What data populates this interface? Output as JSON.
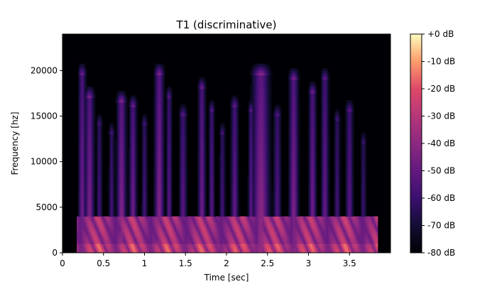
{
  "chart_data": {
    "type": "heatmap",
    "title": "T1 (discriminative)",
    "xlabel": "Time [sec]",
    "ylabel": "Frequency [hz]",
    "xlim": [
      0,
      4.0
    ],
    "ylim": [
      0,
      24000
    ],
    "x_ticks": [
      0,
      0.5,
      1,
      1.5,
      2,
      2.5,
      3,
      3.5
    ],
    "x_tick_labels": [
      "0",
      "0.5",
      "1",
      "1.5",
      "2",
      "2.5",
      "3",
      "3.5"
    ],
    "y_ticks": [
      0,
      5000,
      10000,
      15000,
      20000
    ],
    "y_tick_labels": [
      "0",
      "5000",
      "10000",
      "15000",
      "20000"
    ],
    "colorbar": {
      "label_ticks": [
        0,
        -10,
        -20,
        -30,
        -40,
        -50,
        -60,
        -70,
        -80
      ],
      "label_texts": [
        "+0 dB",
        "-10 dB",
        "-20 dB",
        "-30 dB",
        "-40 dB",
        "-50 dB",
        "-60 dB",
        "-70 dB",
        "-80 dB"
      ],
      "range": [
        -80,
        0
      ],
      "colormap": "magma"
    },
    "events": [
      {
        "t": 0.24,
        "w": 0.04,
        "peak_db": -45,
        "top_hz": 19500
      },
      {
        "t": 0.33,
        "w": 0.05,
        "peak_db": -42,
        "top_hz": 17000
      },
      {
        "t": 0.45,
        "w": 0.03,
        "peak_db": -55,
        "top_hz": 14000
      },
      {
        "t": 0.6,
        "w": 0.03,
        "peak_db": -55,
        "top_hz": 13000
      },
      {
        "t": 0.72,
        "w": 0.05,
        "peak_db": -40,
        "top_hz": 16500
      },
      {
        "t": 0.86,
        "w": 0.04,
        "peak_db": -45,
        "top_hz": 16000
      },
      {
        "t": 1.0,
        "w": 0.03,
        "peak_db": -55,
        "top_hz": 14000
      },
      {
        "t": 1.18,
        "w": 0.05,
        "peak_db": -40,
        "top_hz": 19500
      },
      {
        "t": 1.3,
        "w": 0.03,
        "peak_db": -50,
        "top_hz": 17000
      },
      {
        "t": 1.47,
        "w": 0.04,
        "peak_db": -50,
        "top_hz": 15000
      },
      {
        "t": 1.7,
        "w": 0.04,
        "peak_db": -45,
        "top_hz": 18000
      },
      {
        "t": 1.82,
        "w": 0.03,
        "peak_db": -50,
        "top_hz": 15500
      },
      {
        "t": 1.95,
        "w": 0.03,
        "peak_db": -55,
        "top_hz": 13000
      },
      {
        "t": 2.1,
        "w": 0.04,
        "peak_db": -48,
        "top_hz": 16000
      },
      {
        "t": 2.3,
        "w": 0.03,
        "peak_db": -50,
        "top_hz": 15500
      },
      {
        "t": 2.42,
        "w": 0.09,
        "peak_db": -38,
        "top_hz": 19500
      },
      {
        "t": 2.62,
        "w": 0.04,
        "peak_db": -52,
        "top_hz": 15000
      },
      {
        "t": 2.82,
        "w": 0.05,
        "peak_db": -42,
        "top_hz": 19000
      },
      {
        "t": 3.05,
        "w": 0.04,
        "peak_db": -45,
        "top_hz": 17500
      },
      {
        "t": 3.2,
        "w": 0.04,
        "peak_db": -48,
        "top_hz": 19000
      },
      {
        "t": 3.35,
        "w": 0.03,
        "peak_db": -55,
        "top_hz": 14500
      },
      {
        "t": 3.5,
        "w": 0.04,
        "peak_db": -50,
        "top_hz": 15500
      },
      {
        "t": 3.67,
        "w": 0.03,
        "peak_db": -58,
        "top_hz": 12000
      }
    ],
    "formant_band": {
      "t_start": 0.18,
      "t_end": 3.85,
      "low_hz": 0,
      "high_hz": 4000,
      "peak_db": -15
    }
  }
}
